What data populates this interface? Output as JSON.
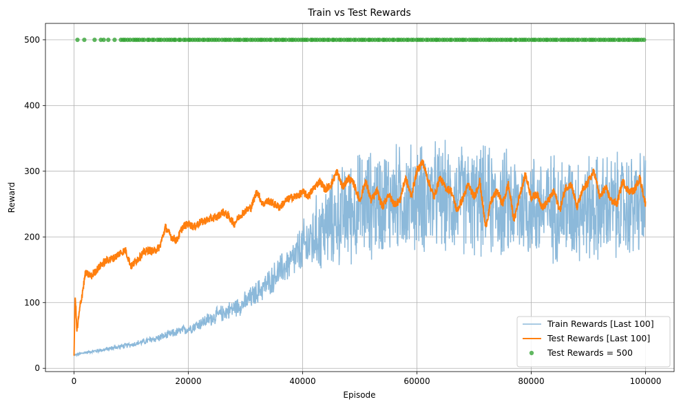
{
  "chart_data": {
    "type": "line",
    "title": "Train vs Test Rewards",
    "xlabel": "Episode",
    "ylabel": "Reward",
    "xlim": [
      -5000,
      105000
    ],
    "ylim": [
      -5,
      525
    ],
    "xticks": [
      0,
      20000,
      40000,
      60000,
      80000,
      100000
    ],
    "xtick_labels": [
      "0",
      "20000",
      "40000",
      "60000",
      "80000",
      "100000"
    ],
    "yticks": [
      0,
      100,
      200,
      300,
      400,
      500
    ],
    "ytick_labels": [
      "0",
      "100",
      "200",
      "300",
      "400",
      "500"
    ],
    "grid": true,
    "legend_position": "lower-right",
    "series": [
      {
        "name": "Train Rewards [Last 100]",
        "kind": "line",
        "color": "#8cb9da",
        "x": [
          0,
          2000,
          5000,
          8000,
          10000,
          12000,
          15000,
          18000,
          20000,
          22000,
          25000,
          28000,
          30000,
          32000,
          34000,
          36000,
          38000,
          40000,
          42000,
          44000,
          46000,
          48000,
          50000,
          52000,
          54000,
          56000,
          58000,
          60000,
          62000,
          64000,
          66000,
          68000,
          70000,
          72000,
          74000,
          76000,
          78000,
          80000,
          82000,
          84000,
          86000,
          88000,
          90000,
          92000,
          94000,
          96000,
          98000,
          100000
        ],
        "y": [
          20,
          24,
          28,
          33,
          36,
          40,
          47,
          55,
          60,
          68,
          80,
          92,
          100,
          115,
          130,
          148,
          162,
          182,
          200,
          215,
          228,
          238,
          246,
          250,
          255,
          258,
          257,
          262,
          258,
          262,
          255,
          258,
          252,
          255,
          248,
          250,
          246,
          248,
          244,
          246,
          243,
          246,
          244,
          242,
          246,
          243,
          248,
          250
        ],
        "noise": [
          2,
          2,
          3,
          4,
          4,
          5,
          6,
          7,
          8,
          10,
          12,
          14,
          16,
          18,
          20,
          24,
          28,
          40,
          55,
          65,
          70,
          75,
          80,
          80,
          80,
          80,
          80,
          80,
          80,
          80,
          80,
          80,
          80,
          80,
          80,
          80,
          80,
          80,
          80,
          80,
          80,
          80,
          80,
          80,
          80,
          80,
          80,
          80
        ]
      },
      {
        "name": "Test Rewards [Last 100]",
        "kind": "line",
        "color": "#ff7f0e",
        "x": [
          0,
          200,
          500,
          1000,
          2000,
          3000,
          4000,
          5000,
          6000,
          7000,
          8000,
          9000,
          10000,
          11000,
          12000,
          13000,
          14000,
          15000,
          16000,
          17000,
          18000,
          19000,
          20000,
          21000,
          22000,
          23000,
          24000,
          25000,
          26000,
          27000,
          28000,
          29000,
          30000,
          31000,
          32000,
          33000,
          34000,
          35000,
          36000,
          37000,
          38000,
          39000,
          40000,
          41000,
          42000,
          43000,
          44000,
          45000,
          46000,
          47000,
          48000,
          49000,
          50000,
          51000,
          52000,
          53000,
          54000,
          55000,
          56000,
          57000,
          58000,
          59000,
          60000,
          61000,
          62000,
          63000,
          64000,
          65000,
          66000,
          67000,
          68000,
          69000,
          70000,
          71000,
          72000,
          73000,
          74000,
          75000,
          76000,
          77000,
          78000,
          79000,
          80000,
          81000,
          82000,
          83000,
          84000,
          85000,
          86000,
          87000,
          88000,
          89000,
          90000,
          91000,
          92000,
          93000,
          94000,
          95000,
          96000,
          97000,
          98000,
          99000,
          100000
        ],
        "y": [
          20,
          115,
          55,
          90,
          145,
          140,
          150,
          160,
          165,
          168,
          175,
          180,
          155,
          165,
          175,
          180,
          178,
          185,
          215,
          200,
          195,
          215,
          220,
          215,
          222,
          225,
          228,
          230,
          238,
          232,
          220,
          232,
          240,
          245,
          270,
          250,
          255,
          250,
          245,
          255,
          260,
          262,
          268,
          262,
          275,
          285,
          272,
          280,
          300,
          275,
          290,
          280,
          255,
          285,
          255,
          270,
          245,
          265,
          250,
          255,
          290,
          262,
          300,
          315,
          285,
          260,
          290,
          275,
          270,
          240,
          258,
          280,
          260,
          285,
          215,
          255,
          270,
          250,
          280,
          225,
          265,
          295,
          260,
          265,
          245,
          255,
          270,
          240,
          275,
          280,
          245,
          270,
          285,
          300,
          260,
          275,
          255,
          250,
          285,
          270,
          270,
          290,
          250
        ],
        "noise": 6
      },
      {
        "name": "Test Rewards = 500",
        "kind": "scatter",
        "color": "#2ca02c",
        "value": 500,
        "x_start": 600,
        "x_end": 100000
      }
    ]
  }
}
